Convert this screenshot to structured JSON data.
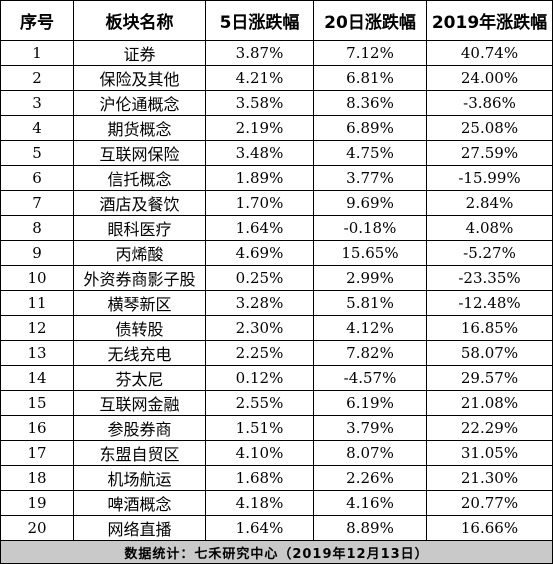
{
  "headers": {
    "index": "序号",
    "sector": "板块名称",
    "chg5d": "5日涨跌幅",
    "chg20d": "20日涨跌幅",
    "chg2019": "2019年涨跌幅"
  },
  "rows": [
    {
      "index": "1",
      "sector": "证券",
      "chg5d": "3.87%",
      "chg20d": "7.12%",
      "chg2019": "40.74%"
    },
    {
      "index": "2",
      "sector": "保险及其他",
      "chg5d": "4.21%",
      "chg20d": "6.81%",
      "chg2019": "24.00%"
    },
    {
      "index": "3",
      "sector": "沪伦通概念",
      "chg5d": "3.58%",
      "chg20d": "8.36%",
      "chg2019": "-3.86%"
    },
    {
      "index": "4",
      "sector": "期货概念",
      "chg5d": "2.19%",
      "chg20d": "6.89%",
      "chg2019": "25.08%"
    },
    {
      "index": "5",
      "sector": "互联网保险",
      "chg5d": "3.48%",
      "chg20d": "4.75%",
      "chg2019": "27.59%"
    },
    {
      "index": "6",
      "sector": "信托概念",
      "chg5d": "1.89%",
      "chg20d": "3.77%",
      "chg2019": "-15.99%"
    },
    {
      "index": "7",
      "sector": "酒店及餐饮",
      "chg5d": "1.70%",
      "chg20d": "9.69%",
      "chg2019": "2.84%"
    },
    {
      "index": "8",
      "sector": "眼科医疗",
      "chg5d": "1.64%",
      "chg20d": "-0.18%",
      "chg2019": "4.08%"
    },
    {
      "index": "9",
      "sector": "丙烯酸",
      "chg5d": "4.69%",
      "chg20d": "15.65%",
      "chg2019": "-5.27%"
    },
    {
      "index": "10",
      "sector": "外资券商影子股",
      "chg5d": "0.25%",
      "chg20d": "2.99%",
      "chg2019": "-23.35%"
    },
    {
      "index": "11",
      "sector": "横琴新区",
      "chg5d": "3.28%",
      "chg20d": "5.81%",
      "chg2019": "-12.48%"
    },
    {
      "index": "12",
      "sector": "债转股",
      "chg5d": "2.30%",
      "chg20d": "4.12%",
      "chg2019": "16.85%"
    },
    {
      "index": "13",
      "sector": "无线充电",
      "chg5d": "2.25%",
      "chg20d": "7.82%",
      "chg2019": "58.07%"
    },
    {
      "index": "14",
      "sector": "芬太尼",
      "chg5d": "0.12%",
      "chg20d": "-4.57%",
      "chg2019": "29.57%"
    },
    {
      "index": "15",
      "sector": "互联网金融",
      "chg5d": "2.55%",
      "chg20d": "6.19%",
      "chg2019": "21.08%"
    },
    {
      "index": "16",
      "sector": "参股券商",
      "chg5d": "1.51%",
      "chg20d": "3.79%",
      "chg2019": "22.29%"
    },
    {
      "index": "17",
      "sector": "东盟自贸区",
      "chg5d": "4.10%",
      "chg20d": "8.07%",
      "chg2019": "31.05%"
    },
    {
      "index": "18",
      "sector": "机场航运",
      "chg5d": "1.68%",
      "chg20d": "2.26%",
      "chg2019": "21.30%"
    },
    {
      "index": "19",
      "sector": "啤酒概念",
      "chg5d": "4.18%",
      "chg20d": "4.16%",
      "chg2019": "20.77%"
    },
    {
      "index": "20",
      "sector": "网络直播",
      "chg5d": "1.64%",
      "chg20d": "8.89%",
      "chg2019": "16.66%"
    }
  ],
  "footer": "数据统计：七禾研究中心（2019年12月13日）",
  "colors": {
    "footer_bg": "#c9c9c9",
    "border": "#000000"
  }
}
